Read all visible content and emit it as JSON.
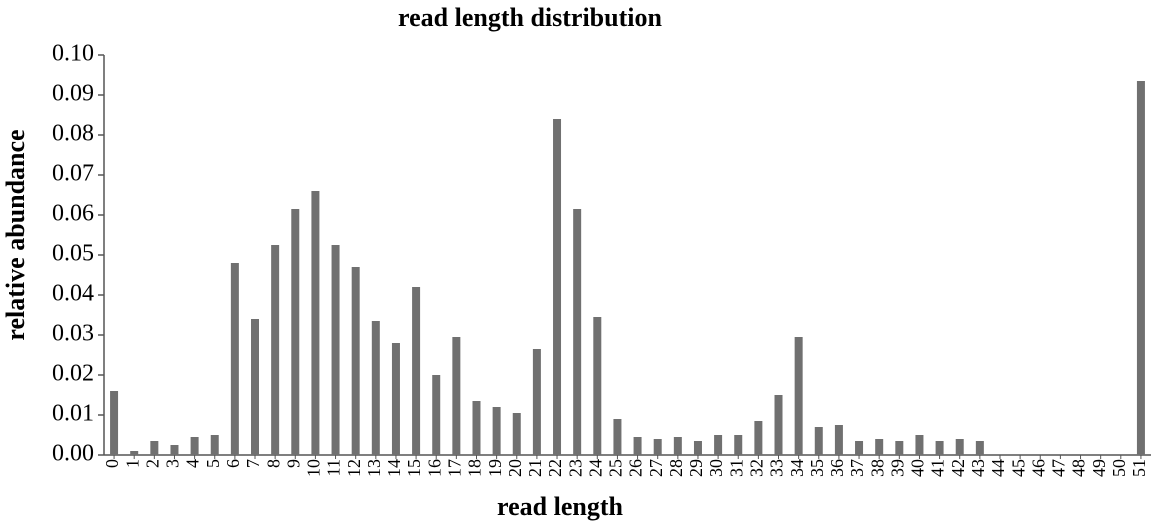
{
  "chart_data": {
    "type": "bar",
    "title": "read length distribution",
    "x_label": "read length",
    "y_label": "relative abundance",
    "categories": [
      "0",
      "1",
      "2",
      "3",
      "4",
      "5",
      "6",
      "7",
      "8",
      "9",
      "10",
      "11",
      "12",
      "13",
      "14",
      "15",
      "16",
      "17",
      "18",
      "19",
      "20",
      "21",
      "22",
      "23",
      "24",
      "25",
      "26",
      "27",
      "28",
      "29",
      "30",
      "31",
      "32",
      "33",
      "34",
      "35",
      "36",
      "37",
      "38",
      "39",
      "40",
      "41",
      "42",
      "43",
      "44",
      "45",
      "46",
      "47",
      "48",
      "49",
      "50",
      "51"
    ],
    "values": [
      0.016,
      0.001,
      0.0035,
      0.0025,
      0.0045,
      0.005,
      0.048,
      0.034,
      0.0525,
      0.0615,
      0.066,
      0.0525,
      0.047,
      0.0335,
      0.028,
      0.042,
      0.02,
      0.0295,
      0.0135,
      0.012,
      0.0105,
      0.0265,
      0.084,
      0.0615,
      0.0345,
      0.009,
      0.0045,
      0.004,
      0.0045,
      0.0035,
      0.005,
      0.005,
      0.0085,
      0.015,
      0.0295,
      0.007,
      0.0075,
      0.0035,
      0.004,
      0.0035,
      0.005,
      0.0035,
      0.004,
      0.0035,
      0,
      0,
      0,
      0,
      0,
      0,
      0,
      0.0935
    ],
    "color": "#707070",
    "ylim": [
      0,
      0.1
    ],
    "yticks": [
      {
        "value": 0,
        "label": "0.00"
      },
      {
        "value": 0.01,
        "label": "0.01"
      },
      {
        "value": 0.02,
        "label": "0.02"
      },
      {
        "value": 0.03,
        "label": "0.03"
      },
      {
        "value": 0.04,
        "label": "0.04"
      },
      {
        "value": 0.05,
        "label": "0.05"
      },
      {
        "value": 0.06,
        "label": "0.06"
      },
      {
        "value": 0.07,
        "label": "0.07"
      },
      {
        "value": 0.08,
        "label": "0.08"
      },
      {
        "value": 0.09,
        "label": "0.09"
      },
      {
        "value": 0.1,
        "label": "0.10"
      }
    ],
    "grid": false
  }
}
